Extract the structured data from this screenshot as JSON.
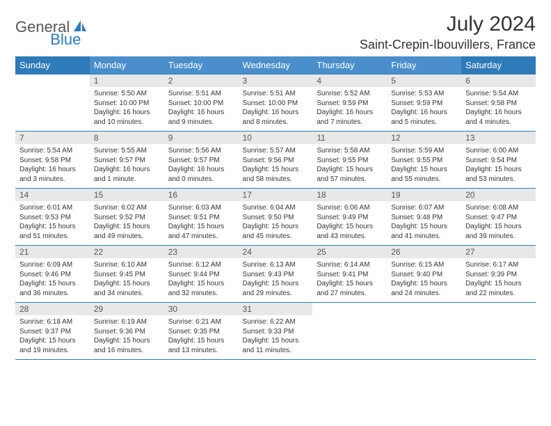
{
  "logo": {
    "text1": "General",
    "text2": "Blue"
  },
  "title": "July 2024",
  "location": "Saint-Crepin-Ibouvillers, France",
  "colors": {
    "header_mid": "#4a8ecb",
    "header_end": "#2f7ab8",
    "day_bg": "#e8e8e8",
    "border": "#2f7ab8",
    "text": "#333333"
  },
  "dayHeaders": [
    "Sunday",
    "Monday",
    "Tuesday",
    "Wednesday",
    "Thursday",
    "Friday",
    "Saturday"
  ],
  "weeks": [
    [
      null,
      {
        "n": "1",
        "sunrise": "5:50 AM",
        "sunset": "10:00 PM",
        "daylight": "16 hours and 10 minutes."
      },
      {
        "n": "2",
        "sunrise": "5:51 AM",
        "sunset": "10:00 PM",
        "daylight": "16 hours and 9 minutes."
      },
      {
        "n": "3",
        "sunrise": "5:51 AM",
        "sunset": "10:00 PM",
        "daylight": "16 hours and 8 minutes."
      },
      {
        "n": "4",
        "sunrise": "5:52 AM",
        "sunset": "9:59 PM",
        "daylight": "16 hours and 7 minutes."
      },
      {
        "n": "5",
        "sunrise": "5:53 AM",
        "sunset": "9:59 PM",
        "daylight": "16 hours and 5 minutes."
      },
      {
        "n": "6",
        "sunrise": "5:54 AM",
        "sunset": "9:58 PM",
        "daylight": "16 hours and 4 minutes."
      }
    ],
    [
      {
        "n": "7",
        "sunrise": "5:54 AM",
        "sunset": "9:58 PM",
        "daylight": "16 hours and 3 minutes."
      },
      {
        "n": "8",
        "sunrise": "5:55 AM",
        "sunset": "9:57 PM",
        "daylight": "16 hours and 1 minute."
      },
      {
        "n": "9",
        "sunrise": "5:56 AM",
        "sunset": "9:57 PM",
        "daylight": "16 hours and 0 minutes."
      },
      {
        "n": "10",
        "sunrise": "5:57 AM",
        "sunset": "9:56 PM",
        "daylight": "15 hours and 58 minutes."
      },
      {
        "n": "11",
        "sunrise": "5:58 AM",
        "sunset": "9:55 PM",
        "daylight": "15 hours and 57 minutes."
      },
      {
        "n": "12",
        "sunrise": "5:59 AM",
        "sunset": "9:55 PM",
        "daylight": "15 hours and 55 minutes."
      },
      {
        "n": "13",
        "sunrise": "6:00 AM",
        "sunset": "9:54 PM",
        "daylight": "15 hours and 53 minutes."
      }
    ],
    [
      {
        "n": "14",
        "sunrise": "6:01 AM",
        "sunset": "9:53 PM",
        "daylight": "15 hours and 51 minutes."
      },
      {
        "n": "15",
        "sunrise": "6:02 AM",
        "sunset": "9:52 PM",
        "daylight": "15 hours and 49 minutes."
      },
      {
        "n": "16",
        "sunrise": "6:03 AM",
        "sunset": "9:51 PM",
        "daylight": "15 hours and 47 minutes."
      },
      {
        "n": "17",
        "sunrise": "6:04 AM",
        "sunset": "9:50 PM",
        "daylight": "15 hours and 45 minutes."
      },
      {
        "n": "18",
        "sunrise": "6:06 AM",
        "sunset": "9:49 PM",
        "daylight": "15 hours and 43 minutes."
      },
      {
        "n": "19",
        "sunrise": "6:07 AM",
        "sunset": "9:48 PM",
        "daylight": "15 hours and 41 minutes."
      },
      {
        "n": "20",
        "sunrise": "6:08 AM",
        "sunset": "9:47 PM",
        "daylight": "15 hours and 39 minutes."
      }
    ],
    [
      {
        "n": "21",
        "sunrise": "6:09 AM",
        "sunset": "9:46 PM",
        "daylight": "15 hours and 36 minutes."
      },
      {
        "n": "22",
        "sunrise": "6:10 AM",
        "sunset": "9:45 PM",
        "daylight": "15 hours and 34 minutes."
      },
      {
        "n": "23",
        "sunrise": "6:12 AM",
        "sunset": "9:44 PM",
        "daylight": "15 hours and 32 minutes."
      },
      {
        "n": "24",
        "sunrise": "6:13 AM",
        "sunset": "9:43 PM",
        "daylight": "15 hours and 29 minutes."
      },
      {
        "n": "25",
        "sunrise": "6:14 AM",
        "sunset": "9:41 PM",
        "daylight": "15 hours and 27 minutes."
      },
      {
        "n": "26",
        "sunrise": "6:15 AM",
        "sunset": "9:40 PM",
        "daylight": "15 hours and 24 minutes."
      },
      {
        "n": "27",
        "sunrise": "6:17 AM",
        "sunset": "9:39 PM",
        "daylight": "15 hours and 22 minutes."
      }
    ],
    [
      {
        "n": "28",
        "sunrise": "6:18 AM",
        "sunset": "9:37 PM",
        "daylight": "15 hours and 19 minutes."
      },
      {
        "n": "29",
        "sunrise": "6:19 AM",
        "sunset": "9:36 PM",
        "daylight": "15 hours and 16 minutes."
      },
      {
        "n": "30",
        "sunrise": "6:21 AM",
        "sunset": "9:35 PM",
        "daylight": "15 hours and 13 minutes."
      },
      {
        "n": "31",
        "sunrise": "6:22 AM",
        "sunset": "9:33 PM",
        "daylight": "15 hours and 11 minutes."
      },
      null,
      null,
      null
    ]
  ]
}
